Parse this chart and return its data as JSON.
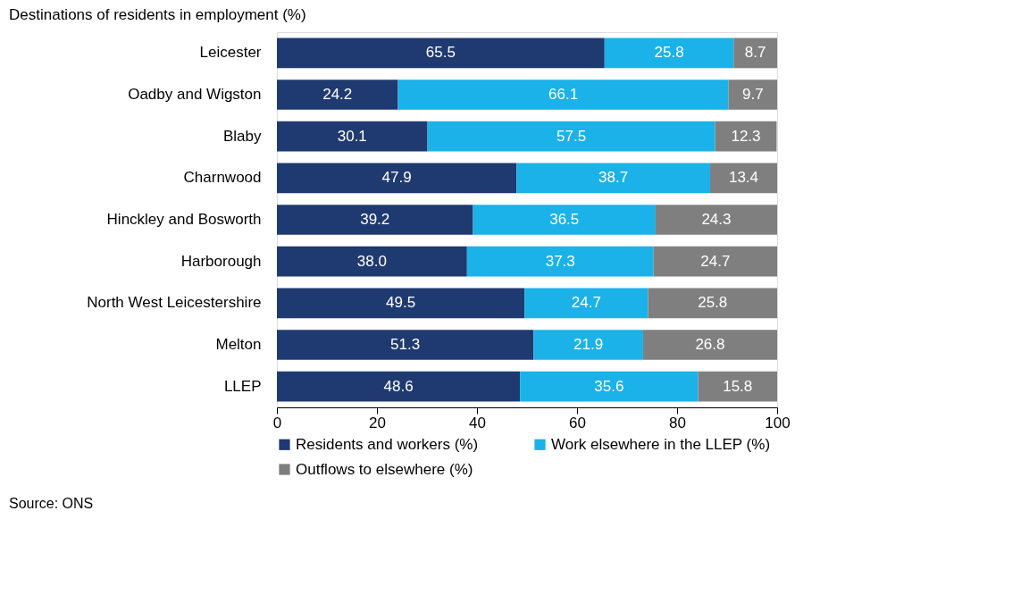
{
  "chart_data": {
    "type": "bar",
    "orientation": "horizontal",
    "stacked": true,
    "title": "Destinations of residents in employment (%)",
    "categories": [
      "Leicester",
      "Oadby and Wigston",
      "Blaby",
      "Charnwood",
      "Hinckley and Bosworth",
      "Harborough",
      "North West Leicestershire",
      "Melton",
      "LLEP"
    ],
    "series": [
      {
        "name": "Residents and workers (%)",
        "color": "#1f3a70",
        "values": [
          65.5,
          24.2,
          30.1,
          47.9,
          39.2,
          38.0,
          49.5,
          51.3,
          48.6
        ]
      },
      {
        "name": "Work elsewhere in the LLEP (%)",
        "color": "#1ab2e8",
        "values": [
          25.8,
          66.1,
          57.5,
          38.7,
          36.5,
          37.3,
          24.7,
          21.9,
          35.6
        ]
      },
      {
        "name": "Outflows to elsewhere (%)",
        "color": "#7f7f7f",
        "values": [
          8.7,
          9.7,
          12.3,
          13.4,
          24.3,
          24.7,
          25.8,
          26.8,
          15.8
        ]
      }
    ],
    "value_labels": [
      [
        "65.5",
        "24.2",
        "30.1",
        "47.9",
        "39.2",
        "38.0",
        "49.5",
        "51.3",
        "48.6"
      ],
      [
        "25.8",
        "66.1",
        "57.5",
        "38.7",
        "36.5",
        "37.3",
        "24.7",
        "21.9",
        "35.6"
      ],
      [
        "8.7",
        "9.7",
        "12.3",
        "13.4",
        "24.3",
        "24.7",
        "25.8",
        "26.8",
        "15.8"
      ]
    ],
    "xlim": [
      0,
      100
    ],
    "xticks": [
      0,
      20,
      40,
      60,
      80,
      100
    ],
    "grid": false,
    "legend": "bottom",
    "annotations": [
      "Source: ONS"
    ]
  }
}
